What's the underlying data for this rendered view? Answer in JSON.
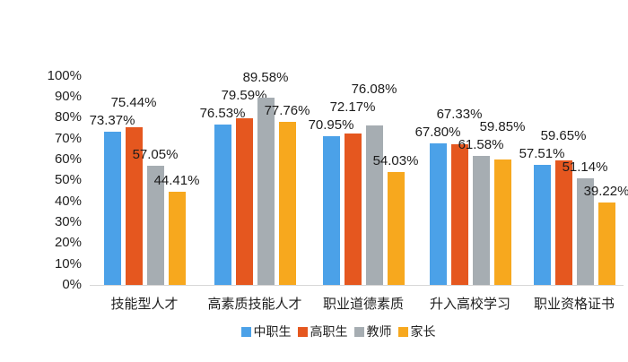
{
  "chart_data": {
    "type": "bar",
    "title": "",
    "categories": [
      "技能型人才",
      "高素质技能人才",
      "职业道德素质",
      "升入高校学习",
      "职业资格证书"
    ],
    "series": [
      {
        "name": "中职生",
        "color": "#4BA1E8",
        "values": [
          73.37,
          76.53,
          70.95,
          67.8,
          57.51
        ]
      },
      {
        "name": "高职生",
        "color": "#E5571F",
        "values": [
          75.44,
          79.59,
          72.17,
          67.33,
          59.65
        ]
      },
      {
        "name": "教师",
        "color": "#A6ADB2",
        "values": [
          57.05,
          89.58,
          76.08,
          61.58,
          51.14
        ]
      },
      {
        "name": "家长",
        "color": "#F7A81E",
        "values": [
          44.41,
          77.76,
          54.03,
          59.85,
          39.22
        ]
      }
    ],
    "value_label_format": "0.00%",
    "y_axis": {
      "min": 0,
      "max": 100,
      "step": 10,
      "tick_labels": [
        "0%",
        "10%",
        "20%",
        "30%",
        "40%",
        "50%",
        "60%",
        "70%",
        "80%",
        "90%",
        "100%"
      ]
    },
    "grid": false,
    "legend_position": "bottom",
    "background": "#ffffff",
    "axis_line_color": "#d8d8d8",
    "text_color": "#1f1f1f"
  }
}
